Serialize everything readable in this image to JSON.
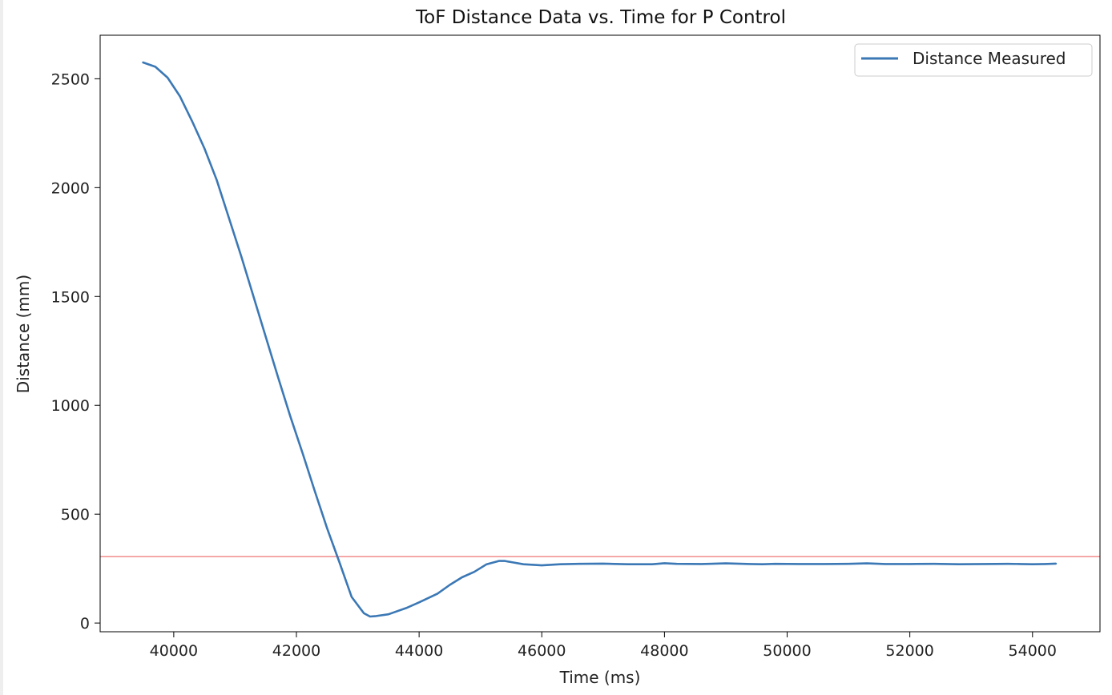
{
  "colors": {
    "series": "#3b78b5",
    "reference": "#f08080",
    "axes": "#000000",
    "text": "#222222"
  },
  "chart_data": {
    "type": "line",
    "title": "ToF Distance Data vs. Time for P Control",
    "xlabel": "Time (ms)",
    "ylabel": "Distance (mm)",
    "xlim": [
      38800,
      55100
    ],
    "ylim": [
      -40,
      2700
    ],
    "x_ticks": [
      40000,
      42000,
      44000,
      46000,
      48000,
      50000,
      52000,
      54000
    ],
    "y_ticks": [
      0,
      500,
      1000,
      1500,
      2000,
      2500
    ],
    "grid": false,
    "legend": {
      "position": "upper right",
      "entries": [
        "Distance Measured"
      ]
    },
    "reference_line": {
      "orientation": "horizontal",
      "y": 305,
      "color": "#f08080"
    },
    "series": [
      {
        "name": "Distance Measured",
        "color": "#3b78b5",
        "x": [
          39500,
          39700,
          39900,
          40100,
          40300,
          40500,
          40700,
          40900,
          41100,
          41300,
          41500,
          41700,
          41900,
          42100,
          42300,
          42500,
          42700,
          42900,
          43100,
          43200,
          43300,
          43500,
          43800,
          44000,
          44300,
          44500,
          44700,
          44900,
          45100,
          45300,
          45400,
          45500,
          45700,
          46000,
          46300,
          46600,
          47000,
          47400,
          47800,
          48000,
          48200,
          48600,
          49000,
          49400,
          49600,
          49800,
          50200,
          50600,
          51000,
          51300,
          51600,
          52000,
          52400,
          52600,
          52800,
          53200,
          53600,
          53800,
          54000,
          54200,
          54380
        ],
        "y": [
          2575,
          2555,
          2505,
          2420,
          2305,
          2180,
          2035,
          1860,
          1685,
          1500,
          1315,
          1130,
          950,
          780,
          605,
          435,
          280,
          120,
          45,
          30,
          32,
          40,
          70,
          95,
          135,
          175,
          210,
          235,
          270,
          285,
          285,
          280,
          270,
          265,
          270,
          272,
          273,
          270,
          270,
          275,
          272,
          271,
          274,
          271,
          270,
          272,
          271,
          271,
          272,
          274,
          271,
          271,
          272,
          271,
          270,
          271,
          272,
          271,
          270,
          271,
          273
        ]
      }
    ]
  }
}
